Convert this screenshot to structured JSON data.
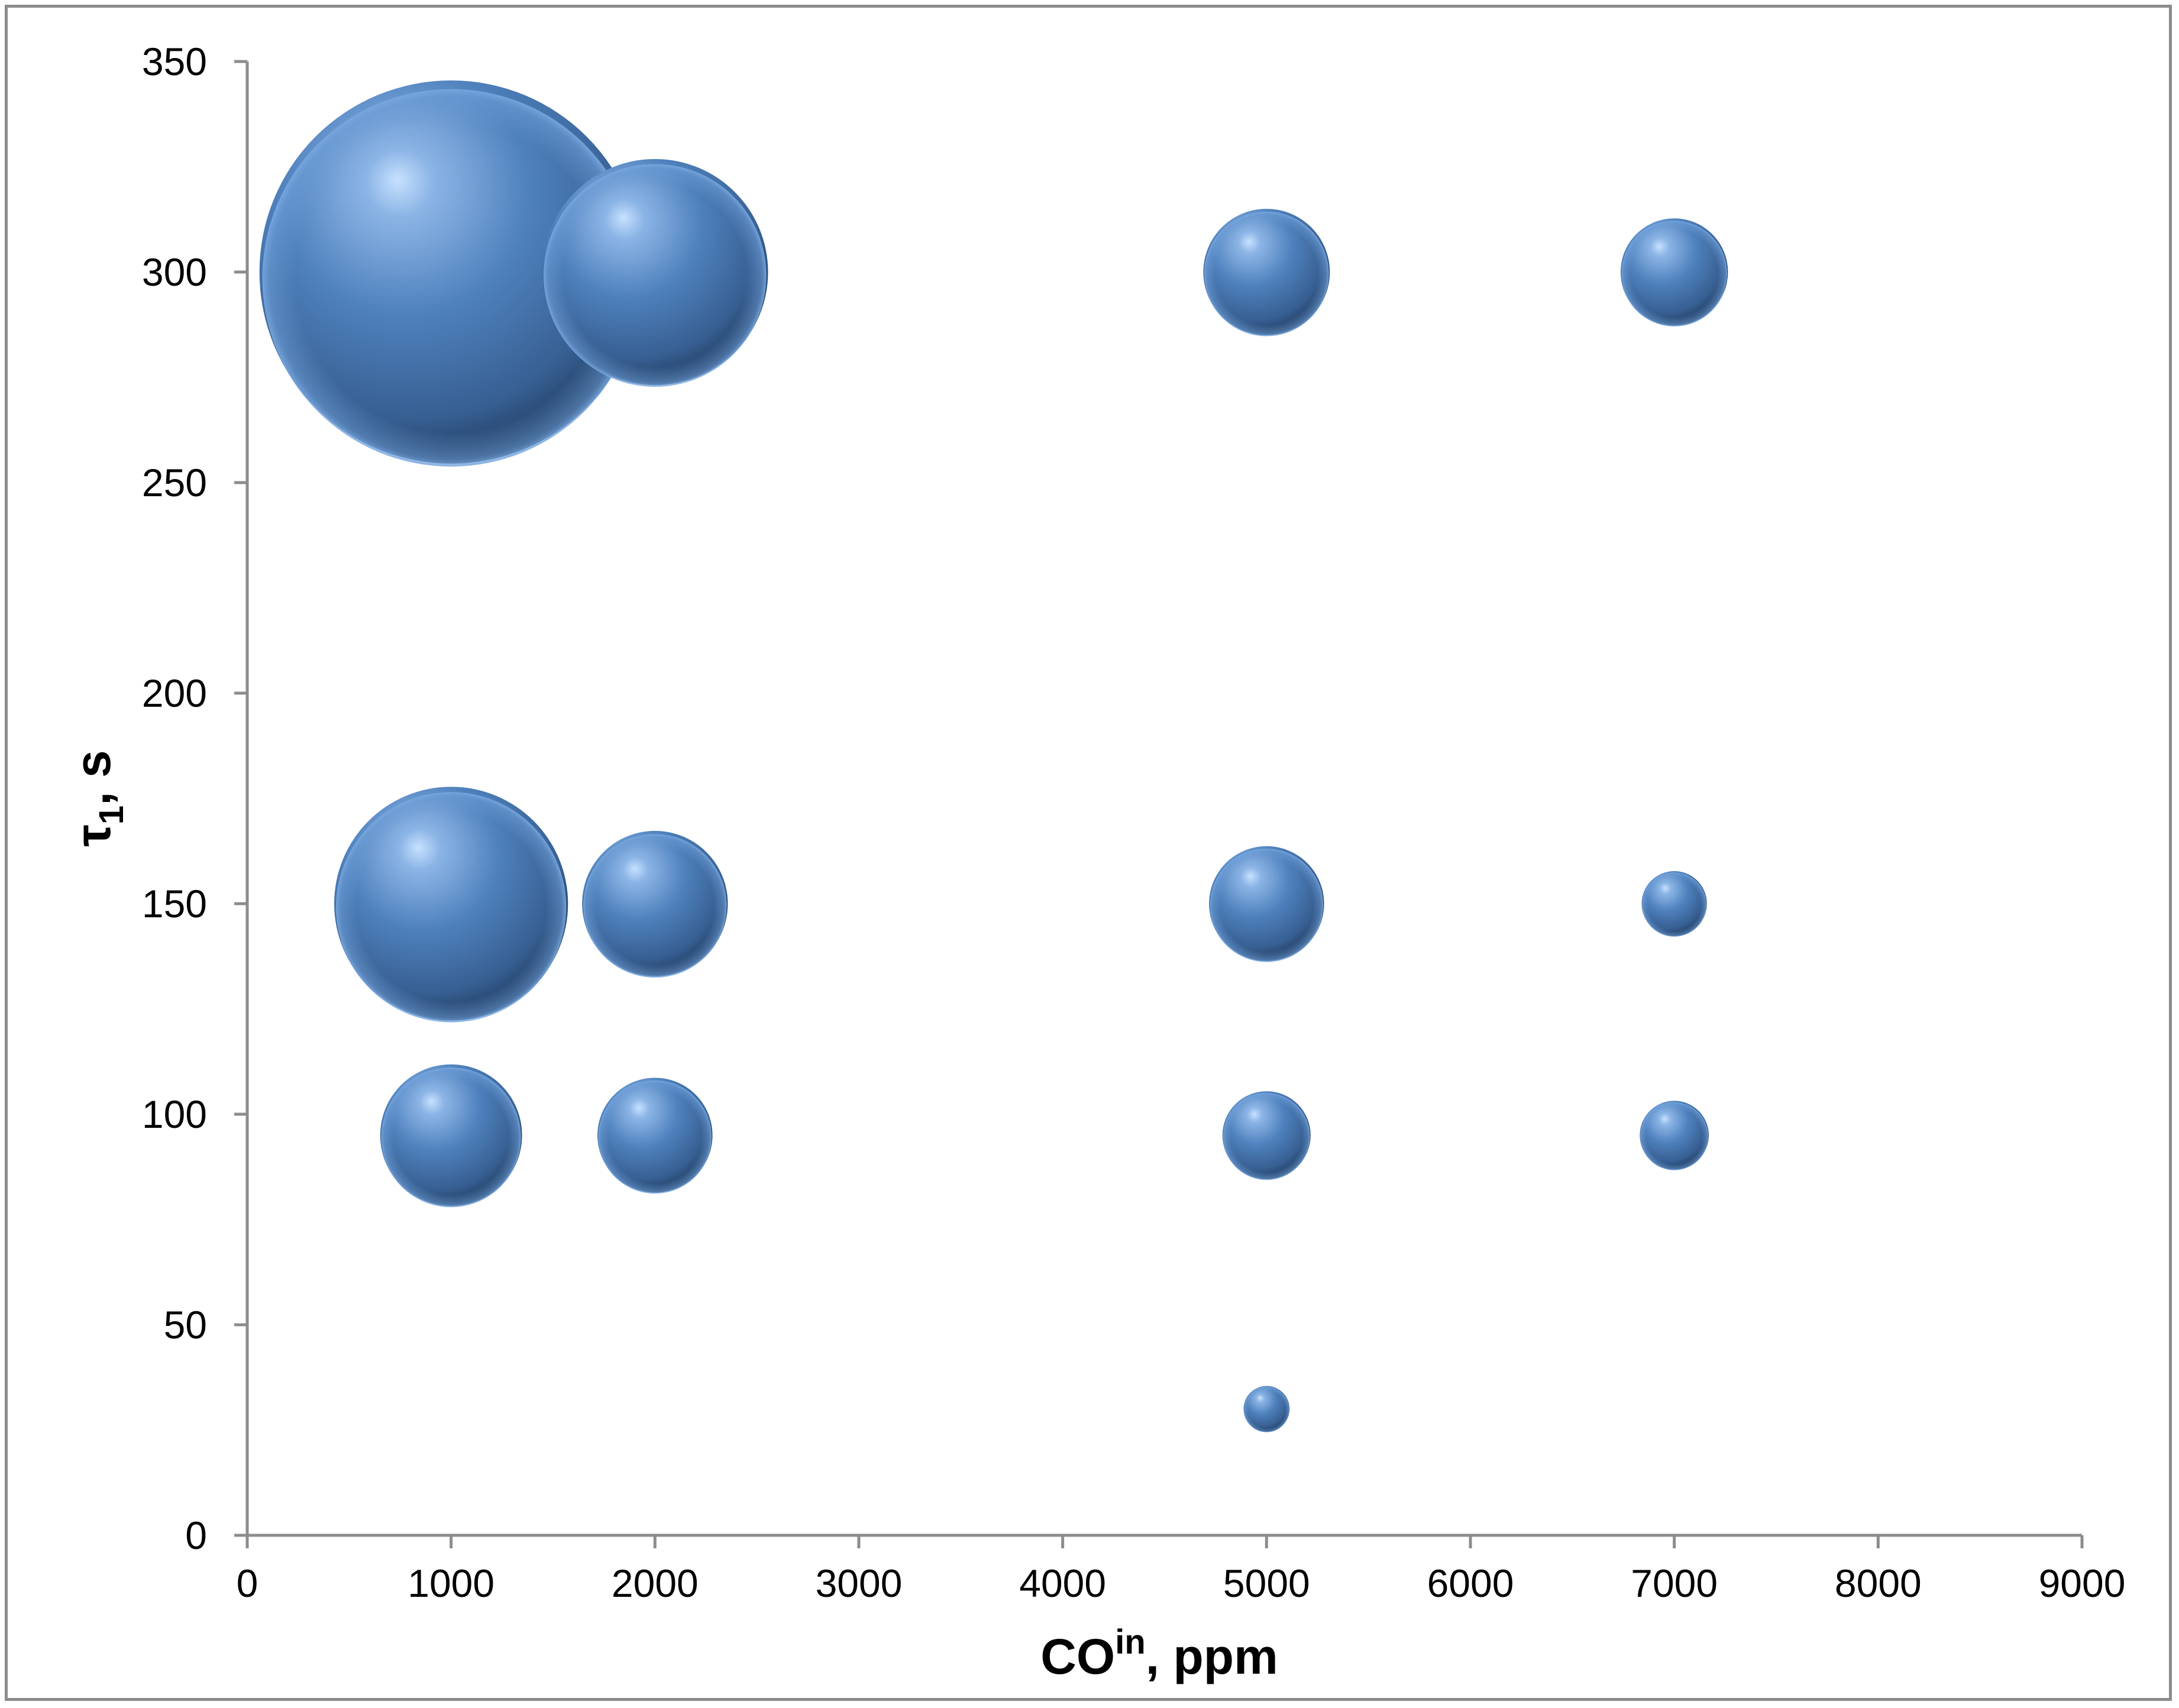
{
  "chart_data": {
    "type": "scatter",
    "subtype": "bubble",
    "xlabel": {
      "main": "CO",
      "superscript": "in",
      "rest": ", ppm"
    },
    "ylabel": {
      "main": "τ",
      "subscript": "1",
      "rest": ", s"
    },
    "xlim": [
      0,
      9000
    ],
    "ylim": [
      0,
      350
    ],
    "xticks": [
      0,
      1000,
      2000,
      3000,
      4000,
      5000,
      6000,
      7000,
      8000,
      9000
    ],
    "yticks": [
      0,
      50,
      100,
      150,
      200,
      250,
      300,
      350
    ],
    "grid": false,
    "legend": "none",
    "color": "#4f81bd",
    "points": [
      {
        "x": 1000,
        "y": 300,
        "size": 1.0
      },
      {
        "x": 2000,
        "y": 300,
        "size": 0.59
      },
      {
        "x": 5000,
        "y": 300,
        "size": 0.33
      },
      {
        "x": 7000,
        "y": 300,
        "size": 0.28
      },
      {
        "x": 1000,
        "y": 150,
        "size": 0.61
      },
      {
        "x": 2000,
        "y": 150,
        "size": 0.38
      },
      {
        "x": 5000,
        "y": 150,
        "size": 0.3
      },
      {
        "x": 7000,
        "y": 150,
        "size": 0.17
      },
      {
        "x": 1000,
        "y": 95,
        "size": 0.37
      },
      {
        "x": 2000,
        "y": 95,
        "size": 0.3
      },
      {
        "x": 5000,
        "y": 95,
        "size": 0.23
      },
      {
        "x": 7000,
        "y": 95,
        "size": 0.18
      },
      {
        "x": 5000,
        "y": 30,
        "size": 0.12
      }
    ]
  }
}
